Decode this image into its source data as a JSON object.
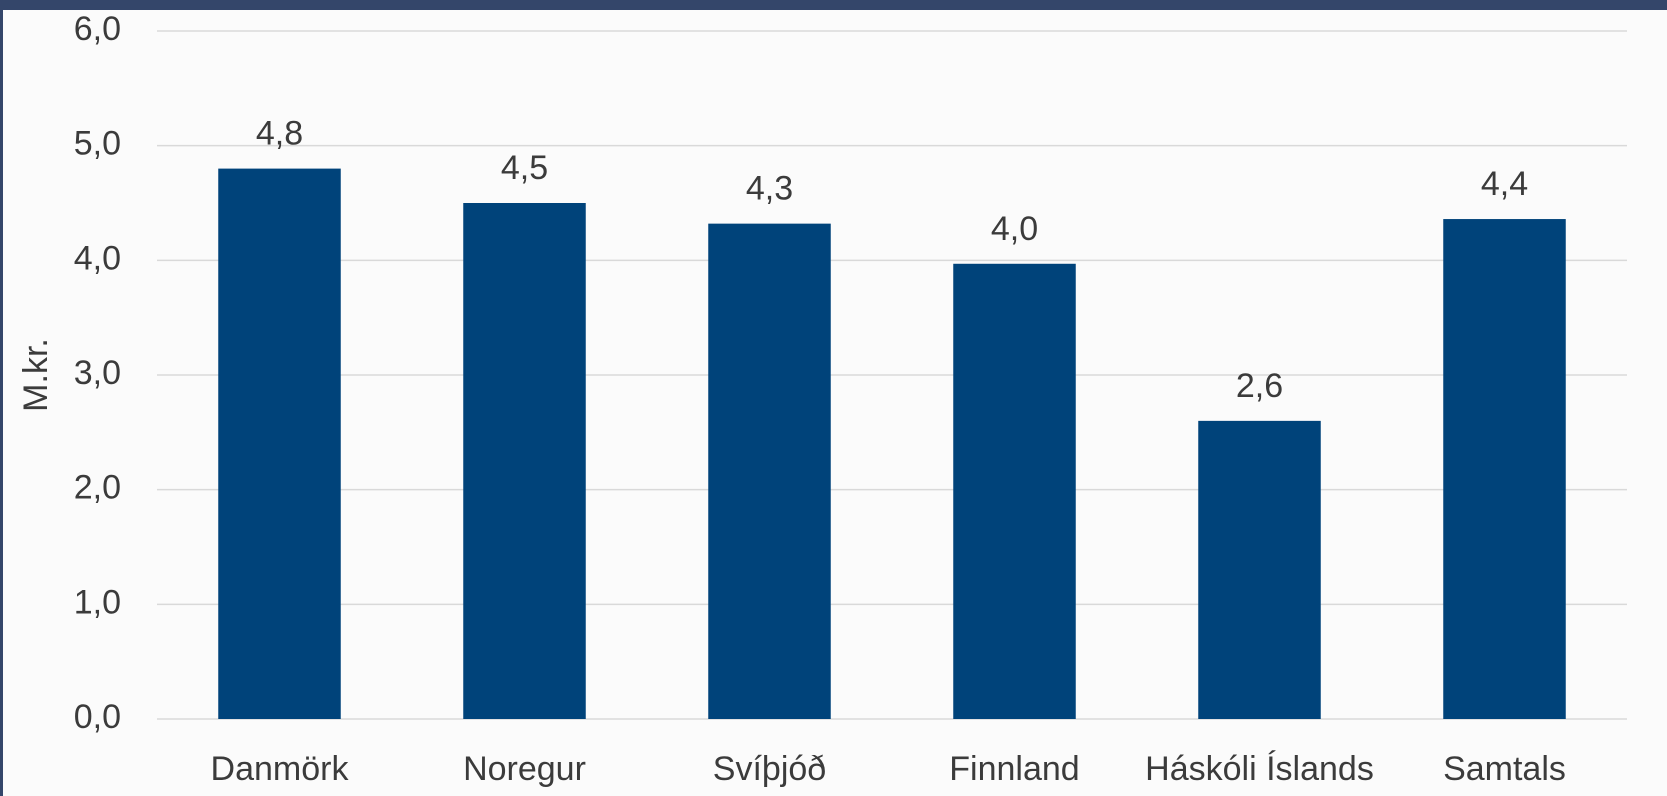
{
  "chart_data": {
    "type": "bar",
    "y_label": "M.kr.",
    "categories": [
      "Danmörk",
      "Noregur",
      "Svíþjóð",
      "Finnland",
      "Háskóli Íslands",
      "Samtals"
    ],
    "values": [
      4.8,
      4.5,
      4.32,
      3.97,
      2.6,
      4.36
    ],
    "value_labels": [
      "4,8",
      "4,5",
      "4,3",
      "4,0",
      "2,6",
      "4,4"
    ],
    "color": "#00437a",
    "ylim": [
      0,
      6
    ],
    "yticks": [
      {
        "value": 0,
        "label": "0,0"
      },
      {
        "value": 1,
        "label": "1,0"
      },
      {
        "value": 2,
        "label": "2,0"
      },
      {
        "value": 3,
        "label": "3,0"
      },
      {
        "value": 4,
        "label": "4,0"
      },
      {
        "value": 5,
        "label": "5,0"
      },
      {
        "value": 6,
        "label": "6,0"
      }
    ],
    "grid": true
  }
}
